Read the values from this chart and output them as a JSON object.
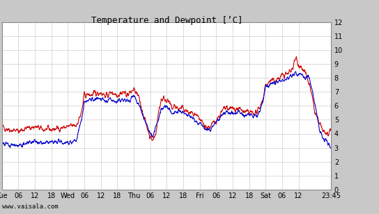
{
  "title": "Temperature and Dewpoint [’C]",
  "ylim": [
    0,
    12
  ],
  "yticks": [
    0,
    1,
    2,
    3,
    4,
    5,
    6,
    7,
    8,
    9,
    10,
    11,
    12
  ],
  "x_tick_positions": [
    0,
    6,
    12,
    18,
    24,
    30,
    36,
    42,
    48,
    54,
    60,
    66,
    72,
    78,
    84,
    90,
    96,
    102,
    108,
    119.75
  ],
  "x_labels": [
    "Tue",
    "06",
    "12",
    "18",
    "Wed",
    "06",
    "12",
    "18",
    "Thu",
    "06",
    "12",
    "18",
    "Fri",
    "06",
    "12",
    "18",
    "Sat",
    "06",
    "12",
    "23:45"
  ],
  "watermark": "www.vaisala.com",
  "bg_color": "#ffffff",
  "outer_bg": "#c8c8c8",
  "grid_color": "#cccccc",
  "temp_color": "#cc0000",
  "dew_color": "#0000cc",
  "line_width": 0.8,
  "n_points": 1500,
  "xlim": [
    0,
    119.75
  ]
}
